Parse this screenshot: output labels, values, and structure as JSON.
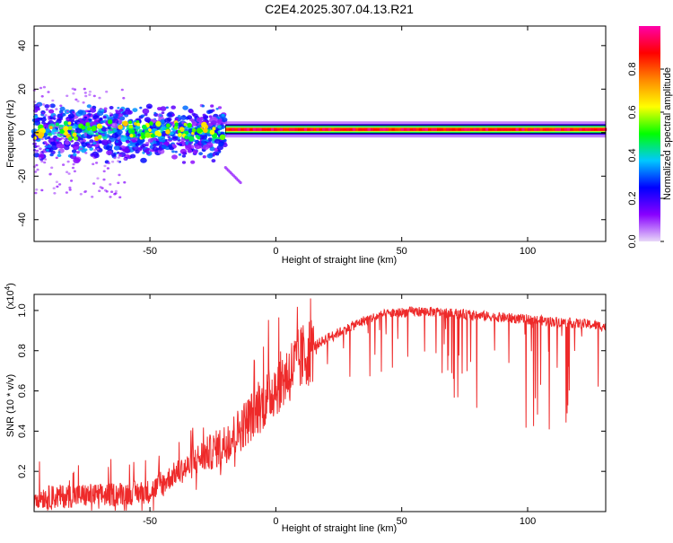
{
  "title": "C2E4.2025.307.04.13.R21",
  "chart_data": [
    {
      "type": "heatmap",
      "title": "C2E4.2025.307.04.13.R21",
      "xlabel": "Height of straight line (km)",
      "ylabel": "Frequency (Hz)",
      "xlim": [
        -96,
        131
      ],
      "ylim": [
        -50,
        49
      ],
      "xticks": [
        -50,
        0,
        50,
        100
      ],
      "yticks": [
        -40,
        -20,
        0,
        20,
        40
      ],
      "colorbar": {
        "label": "Normalized spectral amplitude",
        "range": [
          0.0,
          1.0
        ],
        "ticks": [
          0.0,
          0.2,
          0.4,
          0.6,
          0.8
        ],
        "tick_labels": [
          "0.0",
          "0.2",
          "0.4",
          "0.6",
          "0.8"
        ],
        "colors": [
          "#e8d8f8",
          "#8800ff",
          "#0000ff",
          "#00c8ff",
          "#00ff00",
          "#ffff00",
          "#ff8800",
          "#ff0000",
          "#ff00aa"
        ]
      },
      "features": [
        {
          "name": "noisy broadband region",
          "x_range": [
            -96,
            -20
          ],
          "freq_range": [
            -10,
            10
          ],
          "amplitude": 0.25
        },
        {
          "name": "scattered weak returns",
          "x_range": [
            -96,
            -60
          ],
          "freq_range": [
            -30,
            22
          ],
          "amplitude": 0.05
        },
        {
          "name": "tail near -18 km",
          "x_range": [
            -20,
            -14
          ],
          "freq_range": [
            -23,
            -16
          ],
          "amplitude": 0.1
        },
        {
          "name": "strong carrier line",
          "x_range": [
            -20,
            131
          ],
          "freq_center": 1.5,
          "amplitude": 0.95
        }
      ]
    },
    {
      "type": "line",
      "xlabel": "Height of straight line (km)",
      "ylabel": "SNR (10 * v/v)",
      "y_multiplier": "(x10",
      "y_multiplier_exp": "4",
      "y_multiplier_close": ")",
      "xlim": [
        -96,
        131
      ],
      "ylim": [
        0,
        1.08
      ],
      "xticks": [
        -50,
        0,
        50,
        100
      ],
      "yticks": [
        0.2,
        0.4,
        0.6,
        0.8,
        1.0
      ],
      "color": "#ee2a2a",
      "x": [
        -96,
        -90,
        -80,
        -70,
        -60,
        -50,
        -45,
        -40,
        -35,
        -30,
        -25,
        -20,
        -15,
        -10,
        -5,
        0,
        5,
        10,
        15,
        20,
        25,
        30,
        35,
        40,
        45,
        50,
        55,
        60,
        65,
        70,
        75,
        80,
        85,
        90,
        95,
        100,
        105,
        110,
        115,
        120,
        125,
        131
      ],
      "values": [
        0.08,
        0.07,
        0.08,
        0.08,
        0.09,
        0.1,
        0.14,
        0.19,
        0.22,
        0.27,
        0.3,
        0.34,
        0.4,
        0.47,
        0.54,
        0.62,
        0.69,
        0.76,
        0.82,
        0.86,
        0.89,
        0.92,
        0.95,
        0.97,
        0.985,
        0.99,
        0.995,
        0.995,
        0.99,
        0.985,
        0.98,
        0.975,
        0.97,
        0.965,
        0.96,
        0.955,
        0.95,
        0.945,
        0.94,
        0.935,
        0.93,
        0.92
      ]
    }
  ]
}
